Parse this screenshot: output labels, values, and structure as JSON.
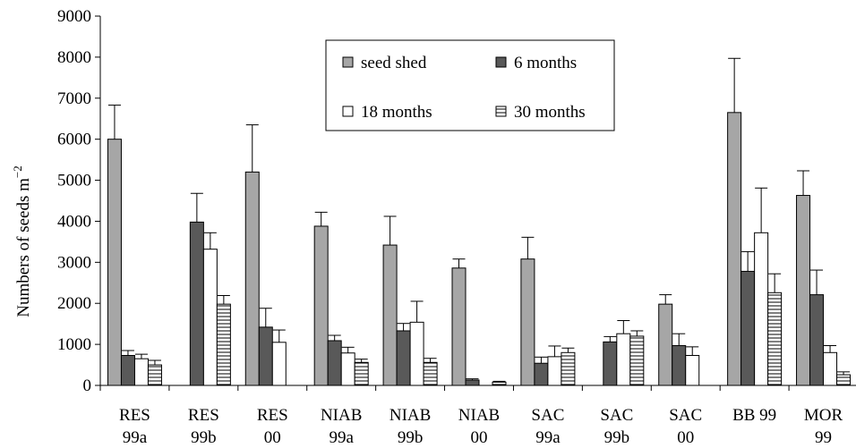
{
  "chart_data": {
    "type": "bar",
    "ylabel": "Numbers of seeds m",
    "ylabel_sup": "−2",
    "ylim": [
      0,
      9000
    ],
    "yticks": [
      0,
      1000,
      2000,
      3000,
      4000,
      5000,
      6000,
      7000,
      8000,
      9000
    ],
    "grid": false,
    "legend_position": "top-center",
    "categories": [
      [
        "RES",
        "99a"
      ],
      [
        "RES",
        "99b"
      ],
      [
        "RES",
        "00"
      ],
      [
        "NIAB",
        "99a"
      ],
      [
        "NIAB",
        "99b"
      ],
      [
        "NIAB",
        "00"
      ],
      [
        "SAC",
        "99a"
      ],
      [
        "SAC",
        "99b"
      ],
      [
        "SAC",
        "00"
      ],
      [
        "BB 99",
        ""
      ],
      [
        "MOR",
        "99"
      ]
    ],
    "series": [
      {
        "name": "seed shed",
        "fill": "#a6a6a6",
        "pattern": "solid",
        "values": [
          6000,
          null,
          5200,
          3880,
          3420,
          2860,
          3080,
          null,
          1980,
          6650,
          4630
        ],
        "errors": [
          830,
          null,
          1150,
          340,
          700,
          220,
          530,
          null,
          230,
          1320,
          600
        ]
      },
      {
        "name": "6 months",
        "fill": "#595959",
        "pattern": "solid",
        "values": [
          730,
          3980,
          1420,
          1090,
          1330,
          130,
          540,
          1060,
          970,
          2780,
          2210
        ],
        "errors": [
          120,
          700,
          460,
          130,
          180,
          30,
          150,
          130,
          290,
          480,
          600
        ]
      },
      {
        "name": "18 months",
        "fill": "#ffffff",
        "pattern": "solid",
        "values": [
          650,
          3320,
          1050,
          790,
          1540,
          null,
          700,
          1260,
          730,
          3720,
          800
        ],
        "errors": [
          110,
          400,
          300,
          140,
          510,
          null,
          260,
          320,
          210,
          1090,
          170
        ]
      },
      {
        "name": "30 months",
        "fill": "#ffffff",
        "pattern": "hlines",
        "values": [
          500,
          1980,
          null,
          560,
          560,
          80,
          800,
          1200,
          null,
          2260,
          260
        ],
        "errors": [
          110,
          210,
          null,
          80,
          100,
          20,
          110,
          130,
          null,
          460,
          70
        ]
      }
    ]
  }
}
